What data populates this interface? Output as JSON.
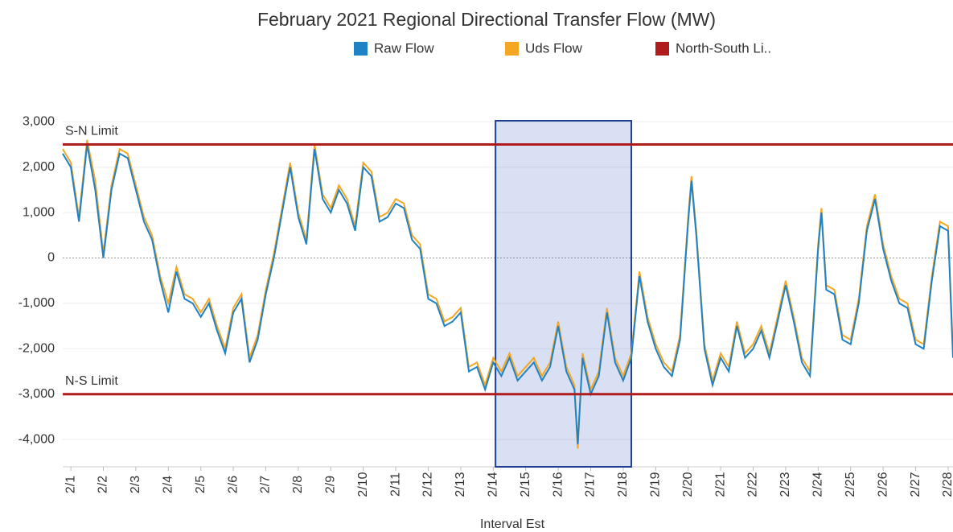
{
  "chart_data": {
    "type": "line",
    "title": "February 2021 Regional Directional Transfer Flow (MW)",
    "x_label": "Interval Est",
    "x": [
      0.75,
      1,
      1.25,
      1.5,
      1.75,
      2,
      2.25,
      2.5,
      2.75,
      3,
      3.25,
      3.5,
      3.75,
      4,
      4.25,
      4.5,
      4.75,
      5,
      5.25,
      5.5,
      5.75,
      6,
      6.25,
      6.5,
      6.75,
      7,
      7.25,
      7.5,
      7.75,
      8,
      8.25,
      8.5,
      8.75,
      9,
      9.25,
      9.5,
      9.75,
      10,
      10.25,
      10.5,
      10.75,
      11,
      11.25,
      11.5,
      11.75,
      12,
      12.25,
      12.5,
      12.75,
      13,
      13.25,
      13.5,
      13.75,
      14,
      14.25,
      14.5,
      14.75,
      15,
      15.25,
      15.5,
      15.75,
      16,
      16.25,
      16.5,
      16.6,
      16.75,
      17,
      17.25,
      17.5,
      17.75,
      18,
      18.25,
      18.5,
      18.75,
      19,
      19.25,
      19.5,
      19.75,
      20,
      20.1,
      20.25,
      20.5,
      20.75,
      21,
      21.25,
      21.5,
      21.75,
      22,
      22.25,
      22.5,
      22.75,
      23,
      23.25,
      23.5,
      23.75,
      24,
      24.1,
      24.25,
      24.5,
      24.75,
      25,
      25.25,
      25.5,
      25.75,
      26,
      26.25,
      26.5,
      26.75,
      27,
      27.25,
      27.5,
      27.75,
      28,
      28.15
    ],
    "series": [
      {
        "name": "Raw Flow",
        "color": "#1f82c4",
        "values": [
          2300,
          2000,
          800,
          2500,
          1500,
          0,
          1500,
          2300,
          2200,
          1500,
          800,
          400,
          -500,
          -1200,
          -300,
          -900,
          -1000,
          -1300,
          -1000,
          -1600,
          -2100,
          -1200,
          -900,
          -2300,
          -1800,
          -800,
          0,
          1000,
          2000,
          900,
          300,
          2400,
          1300,
          1000,
          1500,
          1200,
          600,
          2000,
          1800,
          800,
          900,
          1200,
          1100,
          400,
          200,
          -900,
          -1000,
          -1500,
          -1400,
          -1200,
          -2500,
          -2400,
          -2900,
          -2300,
          -2600,
          -2200,
          -2700,
          -2500,
          -2300,
          -2700,
          -2400,
          -1500,
          -2500,
          -2900,
          -4100,
          -2200,
          -3000,
          -2600,
          -1200,
          -2300,
          -2700,
          -2200,
          -400,
          -1400,
          -2000,
          -2400,
          -2600,
          -1800,
          800,
          1700,
          500,
          -2000,
          -2800,
          -2200,
          -2500,
          -1500,
          -2200,
          -2000,
          -1600,
          -2200,
          -1400,
          -600,
          -1400,
          -2300,
          -2600,
          200,
          1000,
          -700,
          -800,
          -1800,
          -1900,
          -1000,
          600,
          1300,
          200,
          -500,
          -1000,
          -1100,
          -1900,
          -2000,
          -500,
          700,
          600,
          -2200
        ]
      },
      {
        "name": "Uds Flow",
        "color": "#f5a623",
        "values": [
          2400,
          2100,
          900,
          2600,
          1700,
          100,
          1600,
          2400,
          2300,
          1600,
          900,
          500,
          -400,
          -1000,
          -200,
          -800,
          -900,
          -1200,
          -900,
          -1500,
          -2000,
          -1100,
          -800,
          -2200,
          -1700,
          -700,
          100,
          1100,
          2100,
          1000,
          400,
          2500,
          1400,
          1100,
          1600,
          1300,
          700,
          2100,
          1900,
          900,
          1000,
          1300,
          1200,
          500,
          300,
          -800,
          -900,
          -1400,
          -1300,
          -1100,
          -2400,
          -2300,
          -2800,
          -2200,
          -2500,
          -2100,
          -2600,
          -2400,
          -2200,
          -2600,
          -2300,
          -1400,
          -2400,
          -2800,
          -4200,
          -2100,
          -2900,
          -2500,
          -1100,
          -2200,
          -2600,
          -2100,
          -300,
          -1300,
          -1900,
          -2300,
          -2500,
          -1700,
          900,
          1800,
          600,
          -1900,
          -2700,
          -2100,
          -2400,
          -1400,
          -2100,
          -1900,
          -1500,
          -2100,
          -1300,
          -500,
          -1300,
          -2200,
          -2500,
          300,
          1100,
          -600,
          -700,
          -1700,
          -1800,
          -900,
          700,
          1400,
          300,
          -400,
          -900,
          -1000,
          -1800,
          -1900,
          -400,
          800,
          700,
          -2100
        ]
      }
    ],
    "limit_series": {
      "name": "North-South Li..",
      "color": "#b01c1c",
      "lines": [
        {
          "label": "S-N Limit",
          "value": 2500
        },
        {
          "label": "N-S Limit",
          "value": -3000
        }
      ]
    },
    "selection_x": [
      14.07,
      18.25
    ],
    "xlim": [
      0.75,
      28.15
    ],
    "ylim": [
      -4600,
      3200
    ],
    "yticks": [
      {
        "value": 3000,
        "label": "3,000"
      },
      {
        "value": 2000,
        "label": "2,000"
      },
      {
        "value": 1000,
        "label": "1,000"
      },
      0,
      {
        "value": -1000,
        "label": "-1,000"
      },
      {
        "value": -2000,
        "label": "-2,000"
      },
      {
        "value": -3000,
        "label": "-3,000"
      },
      {
        "value": -4000,
        "label": "-4,000"
      }
    ],
    "xticks": [
      {
        "value": 1,
        "label": "2/1"
      },
      {
        "value": 2,
        "label": "2/2"
      },
      {
        "value": 3,
        "label": "2/3"
      },
      {
        "value": 4,
        "label": "2/4"
      },
      {
        "value": 5,
        "label": "2/5"
      },
      {
        "value": 6,
        "label": "2/6"
      },
      {
        "value": 7,
        "label": "2/7"
      },
      {
        "value": 8,
        "label": "2/8"
      },
      {
        "value": 9,
        "label": "2/9"
      },
      {
        "value": 10,
        "label": "2/10"
      },
      {
        "value": 11,
        "label": "2/11"
      },
      {
        "value": 12,
        "label": "2/12"
      },
      {
        "value": 13,
        "label": "2/13"
      },
      {
        "value": 14,
        "label": "2/14"
      },
      {
        "value": 15,
        "label": "2/15"
      },
      {
        "value": 16,
        "label": "2/16"
      },
      {
        "value": 17,
        "label": "2/17"
      },
      {
        "value": 18,
        "label": "2/18"
      },
      {
        "value": 19,
        "label": "2/19"
      },
      {
        "value": 20,
        "label": "2/20"
      },
      {
        "value": 21,
        "label": "2/21"
      },
      {
        "value": 22,
        "label": "2/22"
      },
      {
        "value": 23,
        "label": "2/23"
      },
      {
        "value": 24,
        "label": "2/24"
      },
      {
        "value": 25,
        "label": "2/25"
      },
      {
        "value": 26,
        "label": "2/26"
      },
      {
        "value": 27,
        "label": "2/27"
      },
      {
        "value": 28,
        "label": "2/28"
      }
    ],
    "grid": true
  }
}
